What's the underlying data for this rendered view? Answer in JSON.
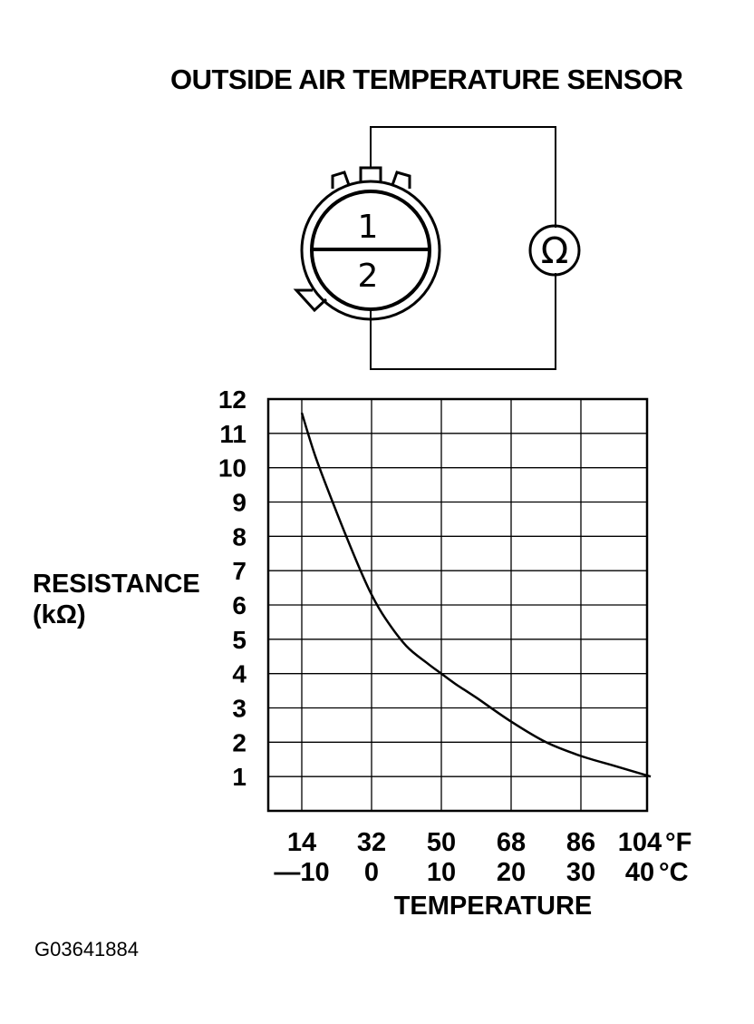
{
  "figure_title": "OUTSIDE AIR TEMPERATURE SENSOR",
  "figure_code": "G03641884",
  "connector": {
    "terminal_1": "1",
    "terminal_2": "2",
    "meter_symbol": "Ω",
    "meter_icon": "ohmmeter-icon"
  },
  "chart_data": {
    "type": "line",
    "title": "",
    "ylabel_line1": "RESISTANCE",
    "ylabel_line2": "(kΩ)",
    "xlabel": "TEMPERATURE",
    "x_unit_f": "°F",
    "x_unit_c": "°C",
    "ylim": [
      0,
      12
    ],
    "xlim_c": [
      -12,
      48
    ],
    "y_ticks": [
      "1",
      "2",
      "3",
      "4",
      "5",
      "6",
      "7",
      "8",
      "9",
      "10",
      "11",
      "12"
    ],
    "x_ticks": [
      {
        "c": -10,
        "f_label": "14",
        "c_label": "—10"
      },
      {
        "c": 0,
        "f_label": "32",
        "c_label": "0"
      },
      {
        "c": 10,
        "f_label": "50",
        "c_label": "10"
      },
      {
        "c": 20,
        "f_label": "68",
        "c_label": "20"
      },
      {
        "c": 30,
        "f_label": "86",
        "c_label": "30"
      },
      {
        "c": 40,
        "f_label": "104",
        "c_label": "40"
      }
    ],
    "series": [
      {
        "x": [
          -10,
          -8,
          -5,
          -2,
          0,
          2,
          5,
          8,
          10,
          12,
          15,
          20,
          25,
          30,
          35,
          40
        ],
        "y": [
          11.6,
          10.3,
          8.7,
          7.2,
          6.3,
          5.6,
          4.8,
          4.3,
          4.0,
          3.7,
          3.3,
          2.6,
          2.0,
          1.6,
          1.3,
          1.0
        ]
      }
    ],
    "grid": true,
    "legend": "none"
  }
}
